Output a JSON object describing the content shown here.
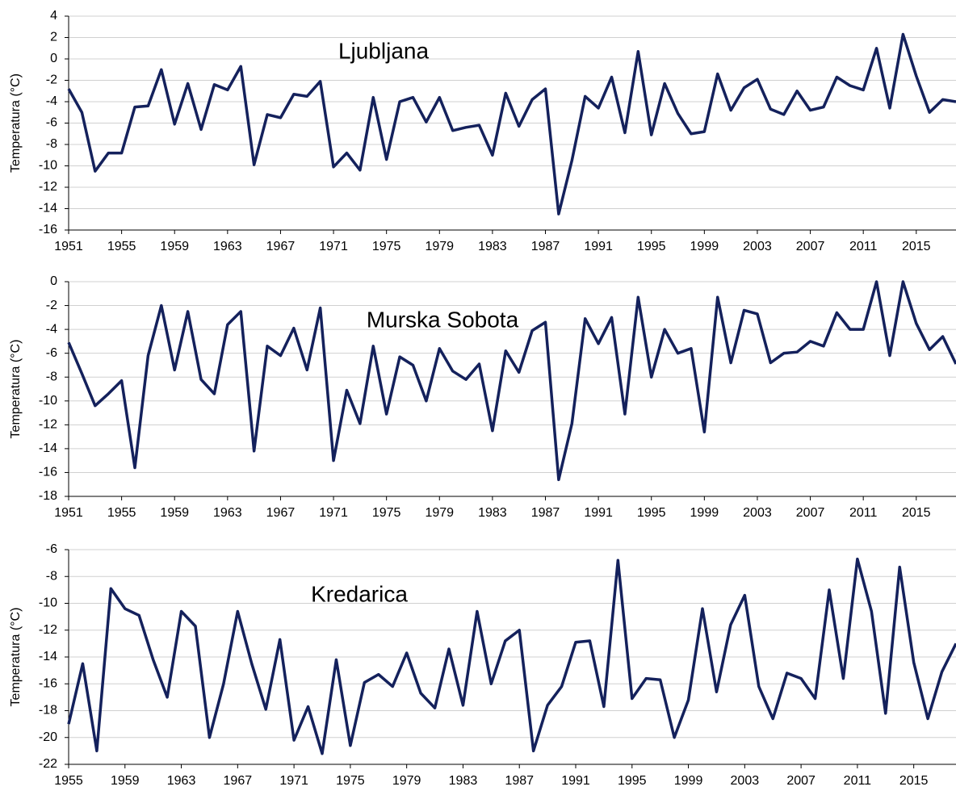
{
  "chart_data": [
    {
      "type": "line",
      "title": "Ljubljana",
      "ylabel": "Temperatura (°C)",
      "color": "#14215c",
      "grid": true,
      "x": [
        1951,
        1952,
        1953,
        1954,
        1955,
        1956,
        1957,
        1958,
        1959,
        1960,
        1961,
        1962,
        1963,
        1964,
        1965,
        1966,
        1967,
        1968,
        1969,
        1970,
        1971,
        1972,
        1973,
        1974,
        1975,
        1976,
        1977,
        1978,
        1979,
        1980,
        1981,
        1982,
        1983,
        1984,
        1985,
        1986,
        1987,
        1988,
        1989,
        1990,
        1991,
        1992,
        1993,
        1994,
        1995,
        1996,
        1997,
        1998,
        1999,
        2000,
        2001,
        2002,
        2003,
        2004,
        2005,
        2006,
        2007,
        2008,
        2009,
        2010,
        2011,
        2012,
        2013,
        2014,
        2015,
        2016,
        2017,
        2018
      ],
      "values": [
        -2.8,
        -5,
        -10.5,
        -8.8,
        -8.8,
        -4.5,
        -4.4,
        -1,
        -6.1,
        -2.3,
        -6.6,
        -2.4,
        -2.9,
        -0.7,
        -9.9,
        -5.2,
        -5.5,
        -3.3,
        -3.5,
        -2.1,
        -10.1,
        -8.8,
        -10.4,
        -3.6,
        -9.4,
        -4,
        -3.6,
        -5.9,
        -3.6,
        -6.7,
        -6.4,
        -6.2,
        -9,
        -3.2,
        -6.3,
        -3.8,
        -2.8,
        -14.5,
        -9.5,
        -3.5,
        -4.6,
        -1.7,
        -6.9,
        0.7,
        -7.1,
        -2.3,
        -5.1,
        -7,
        -6.8,
        -1.4,
        -4.8,
        -2.7,
        -1.9,
        -4.7,
        -5.2,
        -3,
        -4.8,
        -4.5,
        -1.7,
        -2.5,
        -2.9,
        1,
        -4.6,
        2.3,
        -1.6,
        -5,
        -3.8,
        -4
      ],
      "xlim": [
        1951,
        2018
      ],
      "xticks": [
        1951,
        1955,
        1959,
        1963,
        1967,
        1971,
        1975,
        1979,
        1983,
        1987,
        1991,
        1995,
        1999,
        2003,
        2007,
        2011,
        2015
      ],
      "ylim": [
        -16,
        4
      ],
      "yticks": [
        -16,
        -14,
        -12,
        -10,
        -8,
        -6,
        -4,
        -2,
        0,
        2,
        4
      ]
    },
    {
      "type": "line",
      "title": "Murska Sobota",
      "ylabel": "Temperatura (°C)",
      "color": "#14215c",
      "grid": true,
      "x": [
        1951,
        1952,
        1953,
        1954,
        1955,
        1956,
        1957,
        1958,
        1959,
        1960,
        1961,
        1962,
        1963,
        1964,
        1965,
        1966,
        1967,
        1968,
        1969,
        1970,
        1971,
        1972,
        1973,
        1974,
        1975,
        1976,
        1977,
        1978,
        1979,
        1980,
        1981,
        1982,
        1983,
        1984,
        1985,
        1986,
        1987,
        1988,
        1989,
        1990,
        1991,
        1992,
        1993,
        1994,
        1995,
        1996,
        1997,
        1998,
        1999,
        2000,
        2001,
        2002,
        2003,
        2004,
        2005,
        2006,
        2007,
        2008,
        2009,
        2010,
        2011,
        2012,
        2013,
        2014,
        2015,
        2016,
        2017,
        2018
      ],
      "values": [
        -5.1,
        -7.7,
        -10.4,
        -9.4,
        -8.3,
        -15.6,
        -6.2,
        -2,
        -7.4,
        -2.5,
        -8.2,
        -9.4,
        -3.6,
        -2.5,
        -14.2,
        -5.4,
        -6.2,
        -3.9,
        -7.4,
        -2.2,
        -15,
        -9.1,
        -11.9,
        -5.4,
        -11.1,
        -6.3,
        -7,
        -10,
        -5.6,
        -7.5,
        -8.2,
        -6.9,
        -12.5,
        -5.8,
        -7.6,
        -4.1,
        -3.4,
        -16.6,
        -11.9,
        -3.1,
        -5.2,
        -3,
        -11.1,
        -1.3,
        -8,
        -4,
        -6,
        -5.6,
        -12.6,
        -1.3,
        -6.8,
        -2.4,
        -2.7,
        -6.8,
        -6,
        -5.9,
        -5,
        -5.4,
        -2.6,
        -4,
        -4,
        0,
        -6.2,
        0,
        -3.5,
        -5.7,
        -4.6,
        -6.9
      ],
      "xlim": [
        1951,
        2018
      ],
      "xticks": [
        1951,
        1955,
        1959,
        1963,
        1967,
        1971,
        1975,
        1979,
        1983,
        1987,
        1991,
        1995,
        1999,
        2003,
        2007,
        2011,
        2015
      ],
      "ylim": [
        -18,
        0
      ],
      "yticks": [
        -18,
        -16,
        -14,
        -12,
        -10,
        -8,
        -6,
        -4,
        -2,
        0
      ]
    },
    {
      "type": "line",
      "title": "Kredarica",
      "ylabel": "Temperatura (°C)",
      "color": "#14215c",
      "grid": true,
      "x": [
        1955,
        1956,
        1957,
        1958,
        1959,
        1960,
        1961,
        1962,
        1963,
        1964,
        1965,
        1966,
        1967,
        1968,
        1969,
        1970,
        1971,
        1972,
        1973,
        1974,
        1975,
        1976,
        1977,
        1978,
        1979,
        1980,
        1981,
        1982,
        1983,
        1984,
        1985,
        1986,
        1987,
        1988,
        1989,
        1990,
        1991,
        1992,
        1993,
        1994,
        1995,
        1996,
        1997,
        1998,
        1999,
        2000,
        2001,
        2002,
        2003,
        2004,
        2005,
        2006,
        2007,
        2008,
        2009,
        2010,
        2011,
        2012,
        2013,
        2014,
        2015,
        2016,
        2017,
        2018
      ],
      "values": [
        -19,
        -14.5,
        -21,
        -8.9,
        -10.4,
        -10.9,
        -14.2,
        -17,
        -10.6,
        -11.7,
        -20,
        -16,
        -10.6,
        -14.5,
        -17.9,
        -12.7,
        -20.2,
        -17.7,
        -21.2,
        -14.2,
        -20.6,
        -15.9,
        -15.3,
        -16.2,
        -13.7,
        -16.7,
        -17.8,
        -13.4,
        -17.6,
        -10.6,
        -16,
        -12.8,
        -12,
        -21,
        -17.6,
        -16.2,
        -12.9,
        -12.8,
        -17.7,
        -6.8,
        -17.1,
        -15.6,
        -15.7,
        -20,
        -17.2,
        -10.4,
        -16.6,
        -11.6,
        -9.4,
        -16.2,
        -18.6,
        -15.2,
        -15.6,
        -17.1,
        -9,
        -15.6,
        -6.7,
        -10.6,
        -18.2,
        -7.3,
        -14.4,
        -18.6,
        -15.1,
        -13
      ],
      "xlim": [
        1955,
        2018
      ],
      "xticks": [
        1955,
        1959,
        1963,
        1967,
        1971,
        1975,
        1979,
        1983,
        1987,
        1991,
        1995,
        1999,
        2003,
        2007,
        2011,
        2015
      ],
      "ylim": [
        -22,
        -6
      ],
      "yticks": [
        -22,
        -20,
        -18,
        -16,
        -14,
        -12,
        -10,
        -8,
        -6
      ]
    }
  ]
}
